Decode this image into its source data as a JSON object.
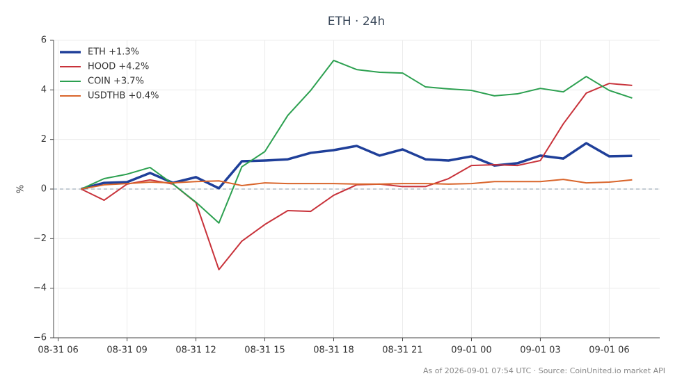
{
  "chart_data": {
    "type": "line",
    "title": "ETH · 24h",
    "ylabel": "%",
    "footer": "As of 2026-09-01 07:54 UTC · Source: CoinUnited.io market API",
    "x": [
      "08-31 07",
      "08-31 08",
      "08-31 09",
      "08-31 10",
      "08-31 11",
      "08-31 12",
      "08-31 13",
      "08-31 14",
      "08-31 15",
      "08-31 16",
      "08-31 17",
      "08-31 18",
      "08-31 19",
      "08-31 20",
      "08-31 21",
      "08-31 22",
      "08-31 23",
      "09-01 00",
      "09-01 01",
      "09-01 02",
      "09-01 03",
      "09-01 04",
      "09-01 05",
      "09-01 06",
      "09-01 07"
    ],
    "xticks": [
      "08-31 06",
      "08-31 09",
      "08-31 12",
      "08-31 15",
      "08-31 18",
      "08-31 21",
      "09-01 00",
      "09-01 03",
      "09-01 06"
    ],
    "ylim": [
      -6,
      6
    ],
    "yticks": [
      {
        "value": -6,
        "label": "−6"
      },
      {
        "value": -4,
        "label": "−4"
      },
      {
        "value": -2,
        "label": "−2"
      },
      0,
      2,
      4,
      6
    ],
    "grid": true,
    "legend": "upper left",
    "reference_line": 0,
    "series": [
      {
        "name": "ETH +1.3%",
        "color": "#1f3f99",
        "width": 3.5,
        "values": [
          0,
          0.25,
          0.28,
          0.65,
          0.25,
          0.48,
          0.03,
          1.12,
          1.15,
          1.2,
          1.46,
          1.57,
          1.74,
          1.35,
          1.6,
          1.2,
          1.15,
          1.32,
          0.95,
          1.04,
          1.35,
          1.23,
          1.85,
          1.32,
          1.34
        ]
      },
      {
        "name": "HOOD +4.2%",
        "color": "#c8323a",
        "width": 2,
        "values": [
          0,
          -0.45,
          0.2,
          0.37,
          0.2,
          -0.55,
          -3.25,
          -2.1,
          -1.43,
          -0.87,
          -0.9,
          -0.25,
          0.17,
          0.2,
          0.1,
          0.1,
          0.42,
          0.95,
          0.98,
          0.95,
          1.15,
          2.63,
          3.87,
          4.26,
          4.18
        ]
      },
      {
        "name": "COIN +3.7%",
        "color": "#2ca050",
        "width": 2,
        "values": [
          0,
          0.42,
          0.6,
          0.87,
          0.2,
          -0.53,
          -1.37,
          0.9,
          1.51,
          2.97,
          3.98,
          5.19,
          4.82,
          4.71,
          4.68,
          4.12,
          4.04,
          3.98,
          3.76,
          3.84,
          4.06,
          3.92,
          4.54,
          3.98,
          3.67
        ]
      },
      {
        "name": "USDTHB +0.4%",
        "color": "#d9652b",
        "width": 2,
        "values": [
          0,
          0.17,
          0.22,
          0.28,
          0.25,
          0.3,
          0.33,
          0.14,
          0.25,
          0.22,
          0.22,
          0.22,
          0.2,
          0.2,
          0.22,
          0.22,
          0.2,
          0.22,
          0.3,
          0.3,
          0.3,
          0.39,
          0.25,
          0.28,
          0.37
        ]
      }
    ]
  }
}
